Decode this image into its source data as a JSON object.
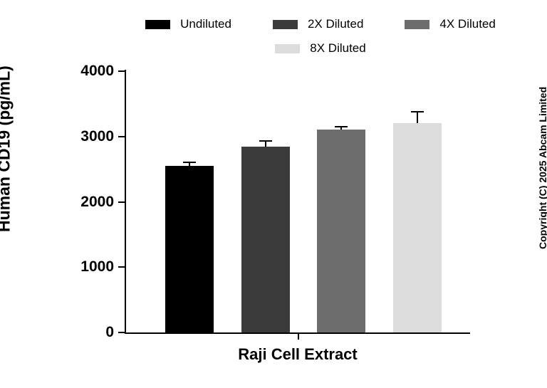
{
  "chart_data": {
    "type": "bar",
    "title": "",
    "xlabel": "Raji Cell Extract",
    "ylabel": "Human CD19 (pg/mL)",
    "ylim": [
      0,
      4000
    ],
    "yticks": [
      0,
      1000,
      2000,
      3000,
      4000
    ],
    "categories": [
      "Raji Cell Extract"
    ],
    "series": [
      {
        "name": "Undiluted",
        "color": "#000000",
        "value": 2550,
        "error": 60
      },
      {
        "name": "2X Diluted",
        "color": "#3b3b3b",
        "value": 2840,
        "error": 95
      },
      {
        "name": "4X Diluted",
        "color": "#6d6d6d",
        "value": 3110,
        "error": 40
      },
      {
        "name": "8X Diluted",
        "color": "#dcdcdc",
        "value": 3200,
        "error": 175
      }
    ],
    "legend_position": "top",
    "grid": false
  },
  "copyright": "Copyright (C) 2025 Abcam Limited"
}
